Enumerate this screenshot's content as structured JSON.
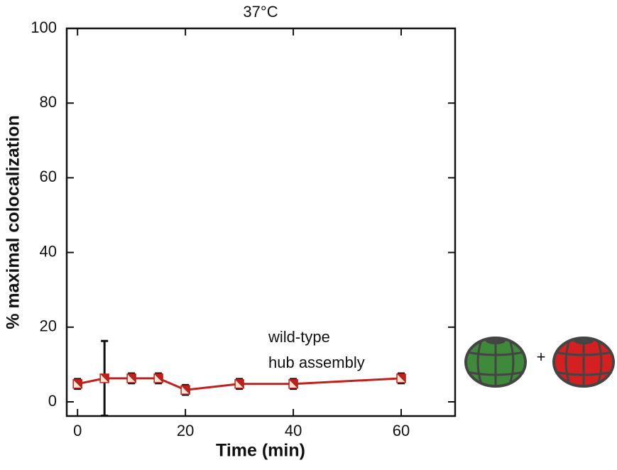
{
  "chart_data": {
    "type": "line",
    "title": "37°C",
    "x_label": "Time (min)",
    "y_label": "% maximal colocalization",
    "x": [
      0,
      5,
      10,
      15,
      20,
      30,
      40,
      60
    ],
    "values": [
      4.8,
      6.3,
      6.3,
      6.3,
      3.2,
      4.8,
      4.8,
      6.3
    ],
    "errors": [
      1.3,
      10,
      1.3,
      1.3,
      1.3,
      1.3,
      1.3,
      1.3
    ],
    "color": "#c0201c",
    "xlim": [
      -2,
      70
    ],
    "xticks": [
      0,
      20,
      40,
      60
    ],
    "ylim": [
      -3.8,
      100
    ],
    "yticks": [
      0,
      20,
      40,
      60,
      80,
      100
    ],
    "annotations": [
      "wild-type",
      "hub assembly",
      "+"
    ]
  }
}
